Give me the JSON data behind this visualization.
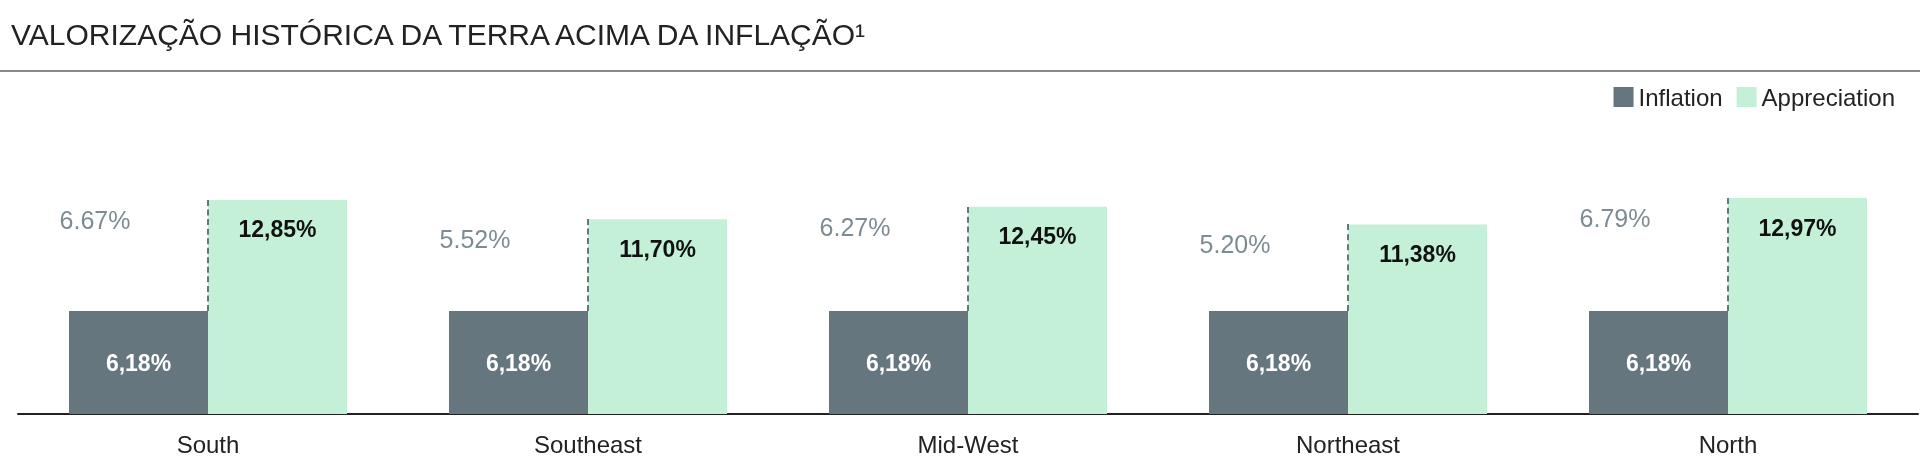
{
  "chart_data": {
    "type": "bar",
    "title": "VALORIZAÇÃO HISTÓRICA DA TERRA ACIMA DA INFLAÇÃO¹",
    "categories": [
      "South",
      "Southeast",
      "Mid-West",
      "Northeast",
      "North"
    ],
    "series": [
      {
        "name": "Inflation",
        "color": "#66767e",
        "values": [
          6.18,
          6.18,
          6.18,
          6.18,
          6.18
        ],
        "value_labels": [
          "6,18%",
          "6,18%",
          "6,18%",
          "6,18%",
          "6,18%"
        ]
      },
      {
        "name": "Appreciation",
        "color": "#c3f0d6",
        "values": [
          12.85,
          11.7,
          12.45,
          11.38,
          12.97
        ],
        "value_labels": [
          "12,85%",
          "11,70%",
          "12,45%",
          "11,38%",
          "12,97%"
        ]
      }
    ],
    "annotations": [
      "6.67%",
      "5.52%",
      "6.27%",
      "5.20%",
      "6.79%"
    ],
    "legend": "top right"
  }
}
